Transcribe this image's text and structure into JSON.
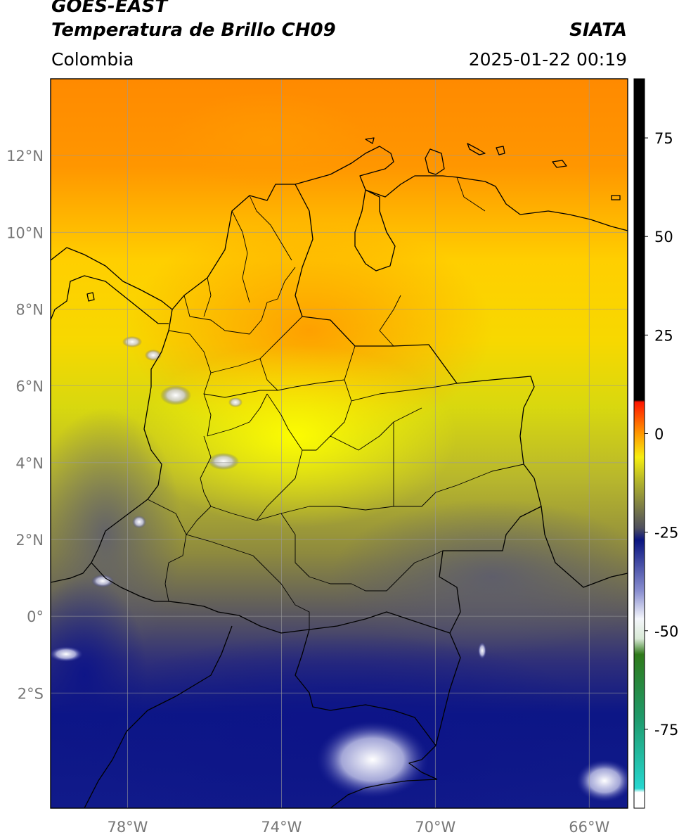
{
  "header": {
    "satellite": "GOES-EAST",
    "product": "Temperatura de Brillo CH09",
    "organization": "SIATA",
    "region": "Colombia",
    "timestamp": "2025-01-22 00:19"
  },
  "map": {
    "lon_range": [
      -80,
      -65
    ],
    "lat_range": [
      -5,
      14
    ],
    "lat_ticks": [
      {
        "value": 12,
        "label": "12°N"
      },
      {
        "value": 10,
        "label": "10°N"
      },
      {
        "value": 8,
        "label": "8°N"
      },
      {
        "value": 6,
        "label": "6°N"
      },
      {
        "value": 4,
        "label": "4°N"
      },
      {
        "value": 2,
        "label": "2°N"
      },
      {
        "value": 0,
        "label": "0°"
      },
      {
        "value": -2,
        "label": "2°S"
      }
    ],
    "lon_ticks": [
      {
        "value": -78,
        "label": "78°W"
      },
      {
        "value": -74,
        "label": "74°W"
      },
      {
        "value": -70,
        "label": "70°W"
      },
      {
        "value": -66,
        "label": "66°W"
      }
    ],
    "grid": true
  },
  "colorbar": {
    "range": [
      -95,
      90
    ],
    "ticks": [
      {
        "value": 75,
        "label": "75"
      },
      {
        "value": 50,
        "label": "50"
      },
      {
        "value": 25,
        "label": "25"
      },
      {
        "value": 0,
        "label": "0"
      },
      {
        "value": -25,
        "label": "-25"
      },
      {
        "value": -50,
        "label": "-50"
      },
      {
        "value": -75,
        "label": "-75"
      }
    ],
    "stops": [
      {
        "value": -95,
        "color": "#ffffff"
      },
      {
        "value": -91,
        "color": "#ffffff"
      },
      {
        "value": -90,
        "color": "#26d7d0"
      },
      {
        "value": -72,
        "color": "#1f9a6a"
      },
      {
        "value": -56,
        "color": "#2f7a1a"
      },
      {
        "value": -52,
        "color": "#d9ead6"
      },
      {
        "value": -47,
        "color": "#f4f6fb"
      },
      {
        "value": -40,
        "color": "#8a8fd0"
      },
      {
        "value": -27,
        "color": "#0a1580"
      },
      {
        "value": -24,
        "color": "#4f4f5e"
      },
      {
        "value": -12,
        "color": "#b3b52a"
      },
      {
        "value": -6,
        "color": "#f6ee10"
      },
      {
        "value": 0,
        "color": "#ff9900"
      },
      {
        "value": 8,
        "color": "#ff1500"
      },
      {
        "value": 8.5,
        "color": "#000000"
      },
      {
        "value": 90,
        "color": "#000000"
      }
    ]
  }
}
